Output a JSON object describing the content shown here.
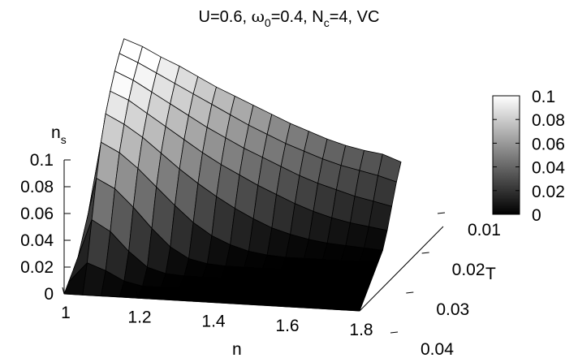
{
  "chart_data": {
    "type": "surface3d",
    "title_parts": {
      "p1": "U=0.6, ",
      "omega": "ω",
      "omega_sub": "0",
      "p2": "=0.4, N",
      "n_sub": "c",
      "p3": "=4, VC"
    },
    "z_label": {
      "base": "n",
      "sub": "s"
    },
    "x_label": "n",
    "y_label": "T",
    "x_ticks": [
      "1",
      "1.2",
      "1.4",
      "1.6",
      "1.8"
    ],
    "y_ticks": [
      "0.01",
      "0.02",
      "0.03",
      "0.04"
    ],
    "z_ticks": [
      "0",
      "0.02",
      "0.04",
      "0.06",
      "0.08",
      "0.1"
    ],
    "colorbar_ticks": [
      "0",
      "0.02",
      "0.04",
      "0.06",
      "0.08",
      "0.1"
    ],
    "x_range": [
      1.0,
      1.8
    ],
    "y_range": [
      0.01,
      0.04
    ],
    "z_range": [
      0,
      0.1
    ],
    "colormap": "grayscale black-to-white",
    "n_values": [
      1.0,
      1.05,
      1.1,
      1.15,
      1.2,
      1.25,
      1.3,
      1.35,
      1.4,
      1.45,
      1.5,
      1.55,
      1.6,
      1.65,
      1.7,
      1.75,
      1.8
    ],
    "T_values": [
      0.01,
      0.0133,
      0.0167,
      0.02,
      0.0233,
      0.0267,
      0.03,
      0.0333,
      0.0367,
      0.04
    ],
    "z": [
      [
        0.0,
        0.11,
        0.105,
        0.098,
        0.092,
        0.085,
        0.078,
        0.072,
        0.066,
        0.06,
        0.054,
        0.049,
        0.044,
        0.04,
        0.037,
        0.035,
        0.03
      ],
      [
        0.0,
        0.108,
        0.102,
        0.095,
        0.088,
        0.081,
        0.074,
        0.067,
        0.06,
        0.054,
        0.048,
        0.043,
        0.038,
        0.034,
        0.031,
        0.028,
        0.024
      ],
      [
        0.0,
        0.104,
        0.098,
        0.09,
        0.082,
        0.074,
        0.066,
        0.059,
        0.052,
        0.046,
        0.04,
        0.034,
        0.029,
        0.025,
        0.021,
        0.018,
        0.015
      ],
      [
        0.0,
        0.098,
        0.092,
        0.083,
        0.074,
        0.065,
        0.056,
        0.048,
        0.041,
        0.034,
        0.028,
        0.022,
        0.017,
        0.013,
        0.01,
        0.008,
        0.006
      ],
      [
        0.0,
        0.09,
        0.083,
        0.074,
        0.063,
        0.052,
        0.042,
        0.033,
        0.025,
        0.018,
        0.012,
        0.008,
        0.005,
        0.003,
        0.002,
        0.001,
        0.0
      ],
      [
        0.0,
        0.078,
        0.071,
        0.06,
        0.047,
        0.034,
        0.022,
        0.013,
        0.007,
        0.003,
        0.001,
        0.0,
        0.0,
        0.0,
        0.0,
        0.0,
        0.0
      ],
      [
        0.0,
        0.06,
        0.053,
        0.04,
        0.025,
        0.012,
        0.004,
        0.001,
        0.0,
        0.0,
        0.0,
        0.0,
        0.0,
        0.0,
        0.0,
        0.0,
        0.0
      ],
      [
        0.0,
        0.038,
        0.03,
        0.016,
        0.005,
        0.001,
        0.0,
        0.0,
        0.0,
        0.0,
        0.0,
        0.0,
        0.0,
        0.0,
        0.0,
        0.0,
        0.0
      ],
      [
        0.0,
        0.015,
        0.01,
        0.003,
        0.0,
        0.0,
        0.0,
        0.0,
        0.0,
        0.0,
        0.0,
        0.0,
        0.0,
        0.0,
        0.0,
        0.0,
        0.0
      ],
      [
        0.0,
        0.0,
        0.0,
        0.0,
        0.0,
        0.0,
        0.0,
        0.0,
        0.0,
        0.0,
        0.0,
        0.0,
        0.0,
        0.0,
        0.0,
        0.0,
        0.0
      ]
    ]
  }
}
